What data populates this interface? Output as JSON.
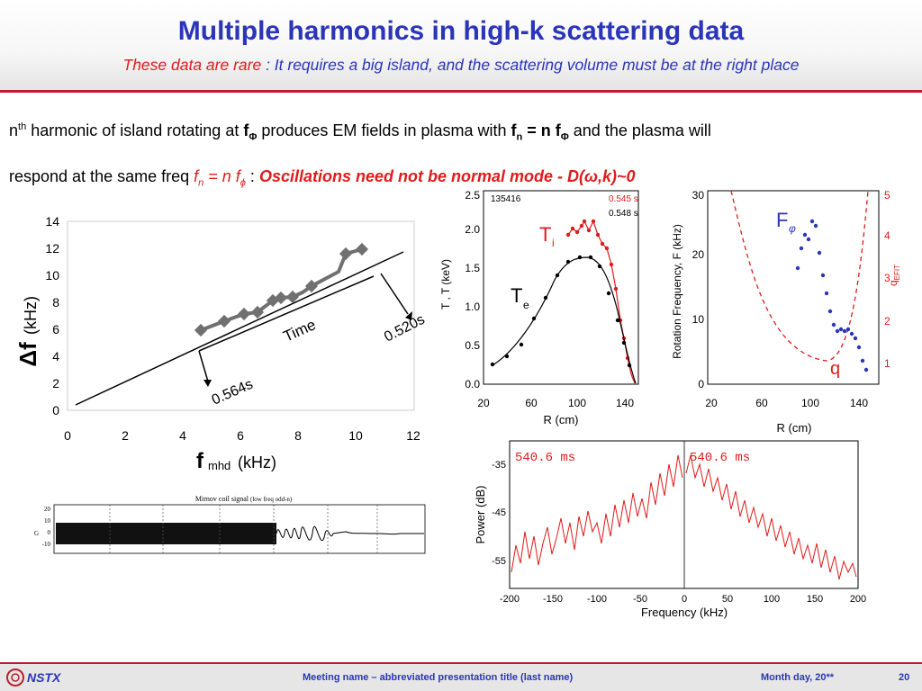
{
  "title": "Multiple harmonics in high-k scattering data",
  "subtitle_rare": "These data are rare",
  "subtitle_rest": " : It requires a big island, and the scattering volume must be at the right place",
  "line1": {
    "a": "n",
    "a_sup": "th",
    "b": " harmonic of island rotating at ",
    "f": "f",
    "f_sub": "Φ",
    "c": " produces EM fields in plasma with ",
    "fn": "f",
    "fn_sub": "n",
    "eq": " = n f",
    "eq_sub": "Φ",
    "d": " and the plasma will"
  },
  "line2": {
    "a": "respond at the same freq ",
    "f": "f",
    "f_sub": "n",
    "eq": " = n f",
    "eq_sub": "ϕ",
    "sep": " : ",
    "emph": "Oscillations need not be normal mode - D(ω,k)~0"
  },
  "fig_delta": {
    "ylabel_main": "Δf",
    "ylabel_unit": "(kHz)",
    "xlabel_main": "f",
    "xlabel_sub": "mhd",
    "xlabel_unit": "(kHz)",
    "xticks": [
      "0",
      "2",
      "4",
      "6",
      "8",
      "10",
      "12"
    ],
    "yticks": [
      "0",
      "2",
      "4",
      "6",
      "8",
      "10",
      "12",
      "14"
    ],
    "time_label": "Time",
    "t1": "0.520s",
    "t2": "0.564s"
  },
  "fig_profile": {
    "shot": "135416",
    "t_red": "0.545 s",
    "t_black": "0.548 s",
    "ti_label": "T",
    "ti_sub": "i",
    "te_label": "T",
    "te_sub": "e",
    "ylabel": "T  , T  (keV)",
    "xlabel": "R (cm)",
    "xticks": [
      "20",
      "60",
      "100",
      "140"
    ],
    "yticks": [
      "0.0",
      "0.5",
      "1.0",
      "1.5",
      "2.0",
      "2.5"
    ]
  },
  "fig_rotation": {
    "ylabel": "Rotation Frequency, F   (kHz)",
    "ylabel_sub": "φ",
    "y2label": "q",
    "y2label_sub": "EFIT",
    "xlabel": "R (cm)",
    "xticks": [
      "20",
      "60",
      "100",
      "140"
    ],
    "yticks": [
      "0",
      "10",
      "20",
      "30"
    ],
    "y2ticks": [
      "1",
      "2",
      "3",
      "4",
      "5"
    ],
    "f_label": "F",
    "f_sub": "φ",
    "q_label": "q"
  },
  "fig_mirnov": {
    "title": "Mirnov coil signal",
    "title_note": "(low freq odd-n)",
    "yticks": [
      "20",
      "10",
      "0",
      "-10"
    ],
    "ylabel": "G"
  },
  "fig_spectrum": {
    "ylabel": "Power (dB)",
    "xlabel": "Frequency (kHz)",
    "xticks": [
      "-200",
      "-150",
      "-100",
      "-50",
      "0",
      "50",
      "100",
      "150",
      "200"
    ],
    "yticks": [
      "-35",
      "-45",
      "-55"
    ],
    "time_left": "540.6  ms",
    "time_right": "540.6  ms"
  },
  "footer": {
    "logo": "NSTX",
    "meeting": "Meeting name  – abbreviated presentation title (last name)",
    "date": "Month day, 20**",
    "page": "20"
  },
  "colors": {
    "title_blue": "#2b35b8",
    "accent_red": "#e01b1b",
    "rule_red": "#b8212a"
  }
}
